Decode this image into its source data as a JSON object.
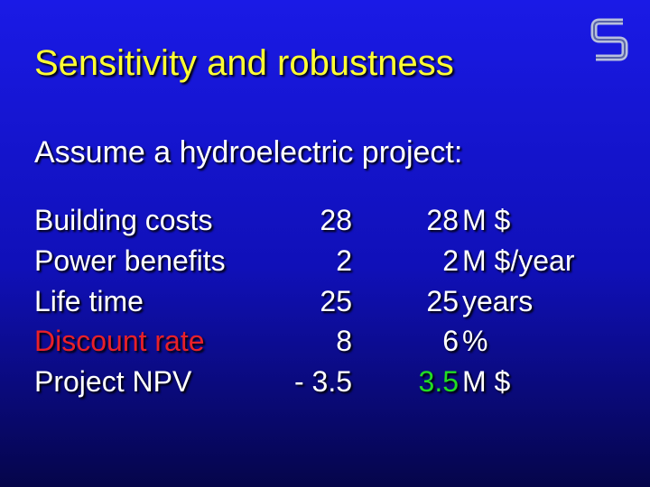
{
  "title": "Sensitivity and robustness",
  "subtitle": "Assume a hydroelectric project:",
  "table": {
    "rows": [
      [
        "Building costs",
        "28",
        "28",
        "M $"
      ],
      [
        "Power benefits",
        "2",
        "2",
        "M $/year"
      ],
      [
        "Life time",
        "25",
        "25",
        "years"
      ],
      [
        "Discount rate",
        "8",
        "6",
        "%"
      ],
      [
        "Project NPV",
        "- 3.5",
        "3.5",
        "M $"
      ]
    ]
  }
}
